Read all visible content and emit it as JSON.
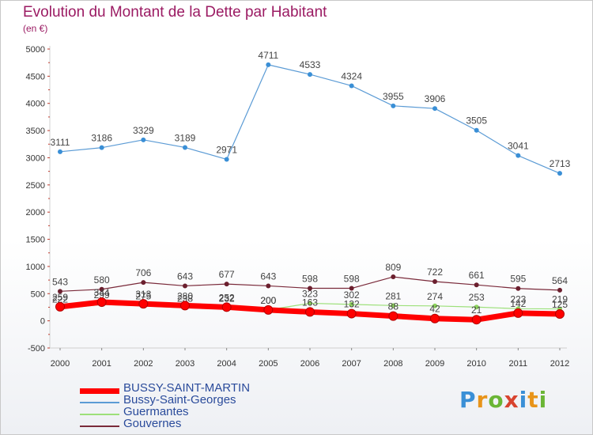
{
  "title": "Evolution du Montant de la Dette par Habitant",
  "subtitle": "(en €)",
  "logo": {
    "text": "Proxiti",
    "colors": [
      "#3a8fd6",
      "#e8941a",
      "#6ab535",
      "#d8432f",
      "#3a8fd6",
      "#e8941a",
      "#6ab535"
    ]
  },
  "chart_data": {
    "type": "line",
    "x": [
      "2000",
      "2001",
      "2002",
      "2003",
      "2004",
      "2005",
      "2006",
      "2007",
      "2008",
      "2009",
      "2010",
      "2011",
      "2012"
    ],
    "ylim": [
      -500,
      5000
    ],
    "yticks": [
      "5000",
      "4500",
      "4000",
      "3500",
      "3000",
      "2500",
      "2000",
      "1500",
      "1000",
      "500",
      "0",
      "-500"
    ],
    "yticks_values": [
      5000,
      4500,
      4000,
      3500,
      3000,
      2500,
      2000,
      1500,
      1000,
      500,
      0,
      -500
    ],
    "grid": false,
    "legend_position": "bottom-left",
    "series": [
      {
        "name": "Bussy-Saint-Georges",
        "color": "#5b9bd5",
        "width": 1.2,
        "marker": "#3a8fd6",
        "values": [
          3111,
          3186,
          3329,
          3189,
          2971,
          4711,
          4533,
          4324,
          3955,
          3906,
          3505,
          3041,
          2713
        ],
        "labels": [
          "3111",
          "3186",
          "3329",
          "3189",
          "2971",
          "4711",
          "4533",
          "4324",
          "3955",
          "3906",
          "3505",
          "3041",
          "2713"
        ]
      },
      {
        "name": "Guermantes",
        "color": "#9de07a",
        "width": 1.2,
        "marker": "#8dd45c",
        "values": [
          222,
          299,
          275,
          238,
          232,
          200,
          323,
          302,
          281,
          274,
          253,
          223,
          219
        ],
        "labels": [
          "222",
          "299",
          "275",
          "238",
          "232",
          "200",
          "323",
          "302",
          "281",
          "274",
          "253",
          "223",
          "219"
        ]
      },
      {
        "name": "Gouvernes",
        "color": "#7a2a3a",
        "width": 1.2,
        "marker": "#6b1f2e",
        "values": [
          543,
          580,
          706,
          643,
          677,
          643,
          598,
          598,
          809,
          722,
          661,
          595,
          564
        ],
        "labels": [
          "543",
          "580",
          "706",
          "643",
          "677",
          "643",
          "598",
          "598",
          "809",
          "722",
          "661",
          "595",
          "564"
        ]
      },
      {
        "name": "BUSSY-SAINT-MARTIN",
        "color": "#ff0000",
        "width": 7,
        "marker": "#ff0000",
        "values": [
          259,
          344,
          313,
          280,
          252,
          200,
          163,
          132,
          88,
          42,
          21,
          142,
          125
        ],
        "labels": [
          "259",
          "344",
          "313",
          "280",
          "252",
          "200",
          "163",
          "132",
          "88",
          "42",
          "21",
          "142",
          "125"
        ]
      }
    ],
    "legend": [
      "BUSSY-SAINT-MARTIN",
      "Bussy-Saint-Georges",
      "Guermantes",
      "Gouvernes"
    ]
  }
}
